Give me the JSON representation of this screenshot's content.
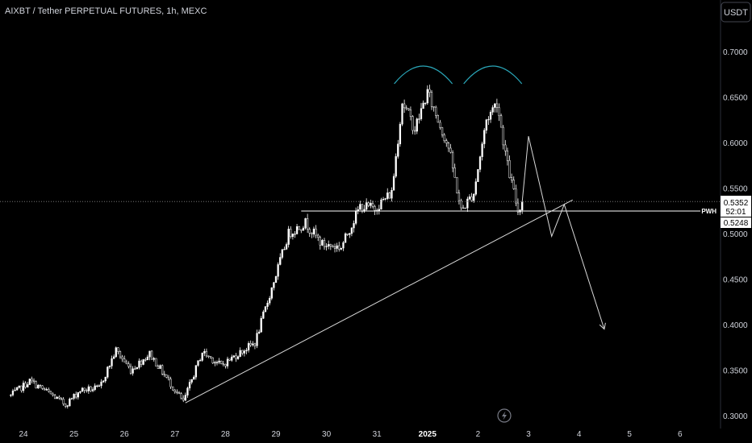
{
  "header": {
    "title": "AIXBT / Tether PERPETUAL FUTURES, 1h, MEXC"
  },
  "currency_button": {
    "label": "USDT"
  },
  "price_tags": {
    "last_price": "0.5352",
    "countdown": "52:01",
    "pwh_value": "0.5248",
    "pwh_label": "PWH"
  },
  "colors": {
    "background": "#000000",
    "candle": "#ffffff",
    "pattern_arc": "#2aa7b9",
    "line": "#d9d9d9",
    "text": "#d1d4dc"
  },
  "icons": {
    "replay": "lightning-icon"
  },
  "chart_data": {
    "type": "candlestick",
    "title": "AIXBT / Tether PERPETUAL FUTURES, 1h, MEXC",
    "x_ticks": [
      "24",
      "25",
      "26",
      "27",
      "28",
      "29",
      "30",
      "31",
      "2025",
      "2",
      "3",
      "4",
      "5",
      "6"
    ],
    "y_ticks": [
      "0.7000",
      "0.6500",
      "0.6000",
      "0.5500",
      "0.5000",
      "0.4500",
      "0.4000",
      "0.3500",
      "0.3000"
    ],
    "ylim": [
      0.295,
      0.74
    ],
    "price_path": [
      [
        "2024-12-23 18:00",
        0.322
      ],
      [
        "2024-12-24 03:00",
        0.338
      ],
      [
        "2024-12-24 12:00",
        0.325
      ],
      [
        "2024-12-24 20:00",
        0.312
      ],
      [
        "2024-12-25 03:00",
        0.328
      ],
      [
        "2024-12-25 12:00",
        0.33
      ],
      [
        "2024-12-25 20:00",
        0.372
      ],
      [
        "2024-12-26 03:00",
        0.35
      ],
      [
        "2024-12-26 12:00",
        0.368
      ],
      [
        "2024-12-26 21:00",
        0.338
      ],
      [
        "2024-12-27 04:00",
        0.315
      ],
      [
        "2024-12-27 13:00",
        0.37
      ],
      [
        "2024-12-27 22:00",
        0.355
      ],
      [
        "2024-12-28 06:00",
        0.368
      ],
      [
        "2024-12-28 14:00",
        0.38
      ],
      [
        "2024-12-28 22:00",
        0.44
      ],
      [
        "2024-12-29 06:00",
        0.5
      ],
      [
        "2024-12-29 14:00",
        0.512
      ],
      [
        "2024-12-29 22:00",
        0.488
      ],
      [
        "2024-12-30 07:00",
        0.485
      ],
      [
        "2024-12-30 16:00",
        0.53
      ],
      [
        "2024-12-30 23:00",
        0.528
      ],
      [
        "2024-12-31 07:00",
        0.545
      ],
      [
        "2024-12-31 12:00",
        0.645
      ],
      [
        "2024-12-31 18:00",
        0.615
      ],
      [
        "2025-01-01 00:00",
        0.655
      ],
      [
        "2025-01-01 10:00",
        0.595
      ],
      [
        "2025-01-01 16:00",
        0.525
      ],
      [
        "2025-01-01 22:00",
        0.545
      ],
      [
        "2025-01-02 04:00",
        0.625
      ],
      [
        "2025-01-02 09:00",
        0.645
      ],
      [
        "2025-01-02 14:00",
        0.575
      ],
      [
        "2025-01-02 19:00",
        0.525
      ],
      [
        "2025-01-02 21:00",
        0.535
      ]
    ],
    "trendline": [
      [
        "2024-12-27 05:00",
        0.314
      ],
      [
        "2025-01-03 21:00",
        0.537
      ]
    ],
    "pwh_level": 0.5248,
    "current_price": 0.5352,
    "projection_path": [
      [
        "2025-01-02 21:00",
        0.535
      ],
      [
        "2025-01-03 00:00",
        0.607
      ],
      [
        "2025-01-03 11:00",
        0.497
      ],
      [
        "2025-01-03 17:00",
        0.532
      ],
      [
        "2025-01-04 12:00",
        0.395
      ]
    ],
    "annotations": [
      {
        "type": "arc",
        "label": "head-and-shoulders top marker 1",
        "peak_date": "2024-12-31 22:00"
      },
      {
        "type": "arc",
        "label": "head-and-shoulders top marker 2",
        "peak_date": "2025-01-02 07:00"
      }
    ],
    "grid": false,
    "legend": "none"
  }
}
